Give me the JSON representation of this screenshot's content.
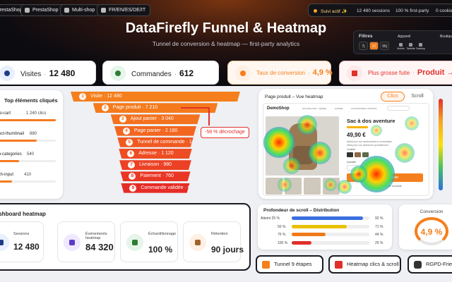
{
  "top_badges": [
    "PrestaShop 8",
    "PrestaShop 9",
    "Multi-shop",
    "FR/EN/ES/DE/IT"
  ],
  "status": {
    "active": "Suivi actif ✨",
    "items": [
      "12 480 sessions",
      "100 % first-party",
      "0 cookie tiers"
    ]
  },
  "header": {
    "title": "DataFirefly Funnel & Heatmap",
    "subtitle": "Tunnel de conversion & heatmap — first-party analytics"
  },
  "filters": {
    "title": "Filtres",
    "device_label": "Appareil",
    "shop_label": "Boutique",
    "periods": [
      "7j",
      "30",
      "90j"
    ],
    "devices": [
      "Mobile",
      "Tablette",
      "Desktop"
    ]
  },
  "kpis": [
    {
      "label": "Visites",
      "value": "12 480"
    },
    {
      "label": "Commandes",
      "value": "612"
    },
    {
      "label": "Taux de conversion",
      "value": "4,9 %"
    },
    {
      "label": "Plus grosse fuite",
      "value": "Produit → Panier"
    }
  ],
  "top_clicks": {
    "title": "Top éléments cliqués",
    "categories": [
      "add-to-cart",
      "product-thumbnail",
      "menu-categories",
      "search-input"
    ],
    "values": [
      1240,
      880,
      540,
      410
    ],
    "value_labels": [
      "1 240 clics",
      "880",
      "540",
      "410"
    ],
    "color": "#f47a1f"
  },
  "funnel": {
    "ranks": [
      "1",
      "2",
      "3",
      "4",
      "5",
      "6",
      "7",
      "8",
      "9"
    ],
    "steps": [
      "Visite",
      "Page produit",
      "Ajout panier",
      "Page panier",
      "Tunnel de commande",
      "Adresse",
      "Livraison",
      "Paiement",
      "Commande validée"
    ],
    "values": [
      12480,
      7210,
      3040,
      2180,
      1460,
      1120,
      980,
      760,
      612
    ],
    "value_labels": [
      "12 480",
      "7 210",
      "3 040",
      "2 180",
      "1 460",
      "1 120",
      "980",
      "760",
      "612"
    ],
    "colors": [
      "#f57f1c",
      "#f57a1c",
      "#f4711d",
      "#f2661f",
      "#f05a21",
      "#ee4d23",
      "#ec4124",
      "#ea3625",
      "#e62c26"
    ],
    "annotation": "-58 % décrochage"
  },
  "heatmap": {
    "title": "Page produit – Vue heatmap",
    "tabs": [
      "Clics",
      "Scroll"
    ],
    "shop": {
      "brand": "DemoShop",
      "nav": [
        "NOUVEAUTÉS",
        "FEMME",
        "HOMME",
        "ACCESSOIRES",
        "PROMOS"
      ],
      "product": "Sac à dos aventure",
      "price": "49,90 €",
      "description": "Idéal pour vos randonnées et confortable, idéal pour vos aventures quotidiennes.",
      "color_label": "Couleur",
      "qty_label": "Quantité",
      "cta": "Ajouter au panier",
      "wishlist": "Ajouter à la liste de souhaits"
    }
  },
  "dashboard": {
    "title": "Dashboard heatmap",
    "stats": [
      {
        "label": "Sessions",
        "value": "12 480"
      },
      {
        "label": "Événements heatmap",
        "value": "84 320"
      },
      {
        "label": "Échantillonnage",
        "value": "100 %"
      },
      {
        "label": "Rétention",
        "value": "90 jours"
      }
    ]
  },
  "scroll_depth": {
    "title": "Profondeur de scroll – Distribution",
    "categories": [
      "Atteint 25 %",
      "50 %",
      "75 %",
      "100 %"
    ],
    "values": [
      92,
      71,
      44,
      25
    ],
    "value_labels": [
      "92 %",
      "71 %",
      "44 %",
      "25 %"
    ],
    "xlim": [
      0,
      100
    ],
    "colors": [
      "#3b6fe0",
      "#e9c100",
      "#f07a1a",
      "#e0302a"
    ]
  },
  "conversion": {
    "title": "Conversion",
    "value": "4,9 %"
  },
  "bottom_badges": [
    "Tunnel 9 étapes",
    "Heatmap clics & scroll",
    "RGPD-Friendly"
  ]
}
